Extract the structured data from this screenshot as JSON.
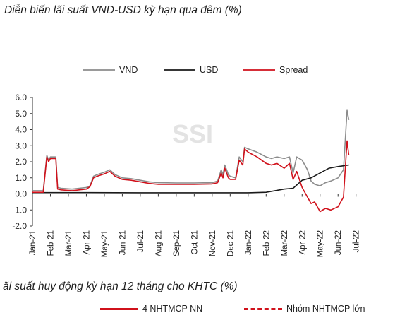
{
  "chart_title": "Diễn biến lãi suất VND-USD kỳ hạn qua đêm (%)",
  "second_title": "ãi suất huy động kỳ hạn 12 tháng cho KHTC (%)",
  "second_legend": [
    {
      "label": "4 NHTMCP NN",
      "style": "solid",
      "color": "#d0111b"
    },
    {
      "label": "Nhóm NHTMCP lớn",
      "style": "dashed",
      "color": "#d0111b"
    }
  ],
  "watermark": "SSI",
  "chart_data": {
    "type": "line",
    "title": "Diễn biến lãi suất VND-USD kỳ hạn qua đêm (%)",
    "ylim": [
      -2.0,
      6.0
    ],
    "y_ticks": [
      "6.0",
      "5.0",
      "4.0",
      "3.0",
      "2.0",
      "1.0",
      "0.0",
      "-1.0",
      "-2.0"
    ],
    "y_tick_values": [
      6,
      5,
      4,
      3,
      2,
      1,
      0,
      -1,
      -2
    ],
    "x_ticks": [
      "Jan-21",
      "Feb-21",
      "Mar-21",
      "Apr-21",
      "May-21",
      "Jun-21",
      "Jul-21",
      "Aug-21",
      "Sep-21",
      "Oct-21",
      "Nov-21",
      "Dec-21",
      "Jan-22",
      "Feb-22",
      "Mar-22",
      "Apr-22",
      "May-22",
      "Jun-22",
      "Jul-22"
    ],
    "legend_position": "top",
    "grid": false,
    "series": [
      {
        "name": "VND",
        "color": "#8c8c8c",
        "points": [
          [
            0,
            0.2
          ],
          [
            0.6,
            0.2
          ],
          [
            0.8,
            2.4
          ],
          [
            0.9,
            2.1
          ],
          [
            1.0,
            2.3
          ],
          [
            1.3,
            2.3
          ],
          [
            1.4,
            0.4
          ],
          [
            1.6,
            0.35
          ],
          [
            2.2,
            0.3
          ],
          [
            2.6,
            0.35
          ],
          [
            3.0,
            0.4
          ],
          [
            3.2,
            0.5
          ],
          [
            3.4,
            1.1
          ],
          [
            3.6,
            1.2
          ],
          [
            4.0,
            1.35
          ],
          [
            4.3,
            1.5
          ],
          [
            4.6,
            1.2
          ],
          [
            5.0,
            1.0
          ],
          [
            5.5,
            0.95
          ],
          [
            6.0,
            0.85
          ],
          [
            6.5,
            0.75
          ],
          [
            7.0,
            0.7
          ],
          [
            8.0,
            0.68
          ],
          [
            9.0,
            0.68
          ],
          [
            10.0,
            0.7
          ],
          [
            10.3,
            0.8
          ],
          [
            10.5,
            1.5
          ],
          [
            10.6,
            1.2
          ],
          [
            10.7,
            1.8
          ],
          [
            10.9,
            1.2
          ],
          [
            11.0,
            1.1
          ],
          [
            11.3,
            1.0
          ],
          [
            11.5,
            2.3
          ],
          [
            11.7,
            2.0
          ],
          [
            11.8,
            2.9
          ],
          [
            12.0,
            2.8
          ],
          [
            12.5,
            2.6
          ],
          [
            13.0,
            2.3
          ],
          [
            13.3,
            2.2
          ],
          [
            13.6,
            2.3
          ],
          [
            14.0,
            2.2
          ],
          [
            14.3,
            2.3
          ],
          [
            14.5,
            1.3
          ],
          [
            14.7,
            2.3
          ],
          [
            15.0,
            2.1
          ],
          [
            15.3,
            1.5
          ],
          [
            15.5,
            0.8
          ],
          [
            15.7,
            0.6
          ],
          [
            16.0,
            0.5
          ],
          [
            16.3,
            0.7
          ],
          [
            16.6,
            0.8
          ],
          [
            17.0,
            1.0
          ],
          [
            17.3,
            1.5
          ],
          [
            17.5,
            5.2
          ],
          [
            17.6,
            4.6
          ]
        ]
      },
      {
        "name": "USD",
        "color": "#1a1a1a",
        "points": [
          [
            0,
            0.08
          ],
          [
            3.0,
            0.08
          ],
          [
            6.0,
            0.07
          ],
          [
            9.0,
            0.07
          ],
          [
            12.0,
            0.07
          ],
          [
            13.0,
            0.1
          ],
          [
            14.0,
            0.3
          ],
          [
            14.5,
            0.35
          ],
          [
            15.0,
            0.85
          ],
          [
            15.5,
            1.0
          ],
          [
            16.0,
            1.3
          ],
          [
            16.5,
            1.6
          ],
          [
            17.0,
            1.7
          ],
          [
            17.6,
            1.8
          ]
        ]
      },
      {
        "name": "Spread",
        "color": "#d0111b",
        "points": [
          [
            0,
            0.1
          ],
          [
            0.6,
            0.1
          ],
          [
            0.8,
            2.3
          ],
          [
            0.9,
            2.0
          ],
          [
            1.0,
            2.2
          ],
          [
            1.3,
            2.2
          ],
          [
            1.4,
            0.3
          ],
          [
            1.6,
            0.25
          ],
          [
            2.2,
            0.2
          ],
          [
            2.6,
            0.25
          ],
          [
            3.0,
            0.3
          ],
          [
            3.2,
            0.45
          ],
          [
            3.4,
            1.0
          ],
          [
            3.6,
            1.1
          ],
          [
            4.0,
            1.25
          ],
          [
            4.3,
            1.4
          ],
          [
            4.6,
            1.1
          ],
          [
            5.0,
            0.9
          ],
          [
            5.5,
            0.85
          ],
          [
            6.0,
            0.75
          ],
          [
            6.5,
            0.65
          ],
          [
            7.0,
            0.6
          ],
          [
            8.0,
            0.6
          ],
          [
            9.0,
            0.6
          ],
          [
            10.0,
            0.62
          ],
          [
            10.3,
            0.7
          ],
          [
            10.5,
            1.3
          ],
          [
            10.6,
            1.0
          ],
          [
            10.7,
            1.6
          ],
          [
            10.9,
            1.0
          ],
          [
            11.0,
            0.9
          ],
          [
            11.3,
            0.9
          ],
          [
            11.5,
            2.1
          ],
          [
            11.7,
            1.8
          ],
          [
            11.8,
            2.8
          ],
          [
            12.0,
            2.6
          ],
          [
            12.5,
            2.3
          ],
          [
            13.0,
            1.9
          ],
          [
            13.3,
            1.8
          ],
          [
            13.6,
            1.9
          ],
          [
            14.0,
            1.6
          ],
          [
            14.3,
            1.9
          ],
          [
            14.5,
            0.9
          ],
          [
            14.7,
            1.4
          ],
          [
            15.0,
            0.4
          ],
          [
            15.3,
            -0.2
          ],
          [
            15.5,
            -0.6
          ],
          [
            15.7,
            -0.5
          ],
          [
            16.0,
            -1.1
          ],
          [
            16.3,
            -0.9
          ],
          [
            16.6,
            -1.0
          ],
          [
            17.0,
            -0.8
          ],
          [
            17.3,
            -0.2
          ],
          [
            17.5,
            3.3
          ],
          [
            17.6,
            2.4
          ]
        ]
      }
    ]
  }
}
